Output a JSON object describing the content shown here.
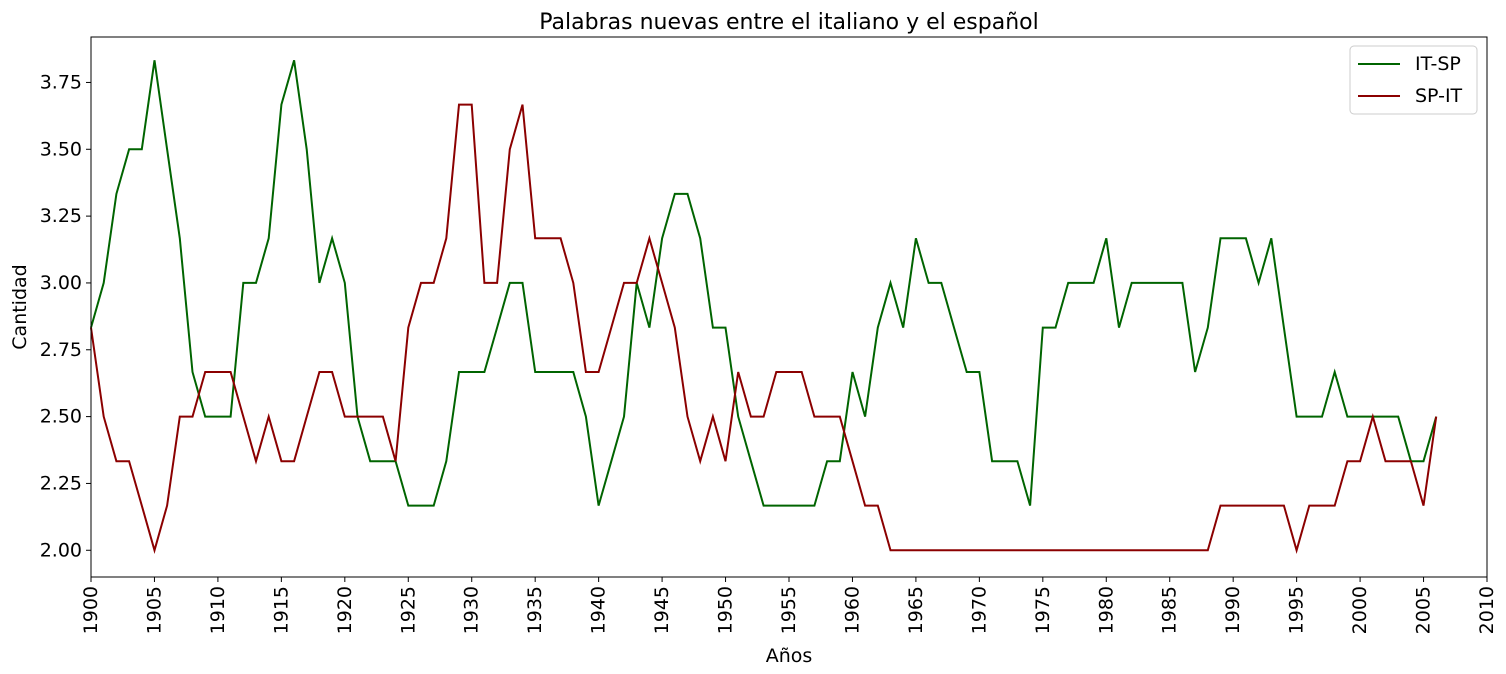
{
  "chart_data": {
    "type": "line",
    "title": "Palabras nuevas entre el italiano y el español",
    "xlabel": "Años",
    "ylabel": "Cantidad",
    "xlim": [
      1900,
      2010
    ],
    "ylim": [
      1.9,
      3.92
    ],
    "xticks": [
      1900,
      1905,
      1910,
      1915,
      1920,
      1925,
      1930,
      1935,
      1940,
      1945,
      1950,
      1955,
      1960,
      1965,
      1970,
      1975,
      1980,
      1985,
      1990,
      1995,
      2000,
      2005,
      2010
    ],
    "yticks": [
      "2.00",
      "2.25",
      "2.50",
      "2.75",
      "3.00",
      "3.25",
      "3.50",
      "3.75"
    ],
    "grid": false,
    "legend_position": "top-right",
    "x": [
      1900,
      1901,
      1902,
      1903,
      1904,
      1905,
      1906,
      1907,
      1908,
      1909,
      1910,
      1911,
      1912,
      1913,
      1914,
      1915,
      1916,
      1917,
      1918,
      1919,
      1920,
      1921,
      1922,
      1923,
      1924,
      1925,
      1926,
      1927,
      1928,
      1929,
      1930,
      1931,
      1932,
      1933,
      1934,
      1935,
      1936,
      1937,
      1938,
      1939,
      1940,
      1941,
      1942,
      1943,
      1944,
      1945,
      1946,
      1947,
      1948,
      1949,
      1950,
      1951,
      1952,
      1953,
      1954,
      1955,
      1956,
      1957,
      1958,
      1959,
      1960,
      1961,
      1962,
      1963,
      1964,
      1965,
      1966,
      1967,
      1968,
      1969,
      1970,
      1971,
      1972,
      1973,
      1974,
      1975,
      1976,
      1977,
      1978,
      1979,
      1980,
      1981,
      1982,
      1983,
      1984,
      1985,
      1986,
      1987,
      1988,
      1989,
      1990,
      1991,
      1992,
      1993,
      1994,
      1995,
      1996,
      1997,
      1998,
      1999,
      2000,
      2001,
      2002,
      2003,
      2004,
      2005,
      2006
    ],
    "series": [
      {
        "name": "IT-SP",
        "color": "#006400",
        "values": [
          2.833,
          3.0,
          3.333,
          3.5,
          3.5,
          3.833,
          3.5,
          3.167,
          2.667,
          2.5,
          2.5,
          2.5,
          3.0,
          3.0,
          3.167,
          3.667,
          3.833,
          3.5,
          3.0,
          3.167,
          3.0,
          2.5,
          2.333,
          2.333,
          2.333,
          2.167,
          2.167,
          2.167,
          2.333,
          2.667,
          2.667,
          2.667,
          2.833,
          3.0,
          3.0,
          2.667,
          2.667,
          2.667,
          2.667,
          2.5,
          2.167,
          2.333,
          2.5,
          3.0,
          2.833,
          3.167,
          3.333,
          3.333,
          3.167,
          2.833,
          2.833,
          2.5,
          2.333,
          2.167,
          2.167,
          2.167,
          2.167,
          2.167,
          2.333,
          2.333,
          2.667,
          2.5,
          2.833,
          3.0,
          2.833,
          3.167,
          3.0,
          3.0,
          2.833,
          2.667,
          2.667,
          2.333,
          2.333,
          2.333,
          2.167,
          2.833,
          2.833,
          3.0,
          3.0,
          3.0,
          3.167,
          2.833,
          3.0,
          3.0,
          3.0,
          3.0,
          3.0,
          2.667,
          2.833,
          3.167,
          3.167,
          3.167,
          3.0,
          3.167,
          2.833,
          2.5,
          2.5,
          2.5,
          2.667,
          2.5,
          2.5,
          2.5,
          2.5,
          2.5,
          2.333,
          2.333,
          2.5
        ]
      },
      {
        "name": "SP-IT",
        "color": "#8b0000",
        "values": [
          2.833,
          2.5,
          2.333,
          2.333,
          2.167,
          2.0,
          2.167,
          2.5,
          2.5,
          2.667,
          2.667,
          2.667,
          2.5,
          2.333,
          2.5,
          2.333,
          2.333,
          2.5,
          2.667,
          2.667,
          2.5,
          2.5,
          2.5,
          2.5,
          2.333,
          2.833,
          3.0,
          3.0,
          3.167,
          3.667,
          3.667,
          3.0,
          3.0,
          3.5,
          3.667,
          3.167,
          3.167,
          3.167,
          3.0,
          2.667,
          2.667,
          2.833,
          3.0,
          3.0,
          3.167,
          3.0,
          2.833,
          2.5,
          2.333,
          2.5,
          2.333,
          2.667,
          2.5,
          2.5,
          2.667,
          2.667,
          2.667,
          2.5,
          2.5,
          2.5,
          2.333,
          2.167,
          2.167,
          2.0,
          2.0,
          2.0,
          2.0,
          2.0,
          2.0,
          2.0,
          2.0,
          2.0,
          2.0,
          2.0,
          2.0,
          2.0,
          2.0,
          2.0,
          2.0,
          2.0,
          2.0,
          2.0,
          2.0,
          2.0,
          2.0,
          2.0,
          2.0,
          2.0,
          2.0,
          2.167,
          2.167,
          2.167,
          2.167,
          2.167,
          2.167,
          2.0,
          2.167,
          2.167,
          2.167,
          2.333,
          2.333,
          2.5,
          2.333,
          2.333,
          2.333,
          2.167,
          2.5
        ]
      }
    ]
  }
}
